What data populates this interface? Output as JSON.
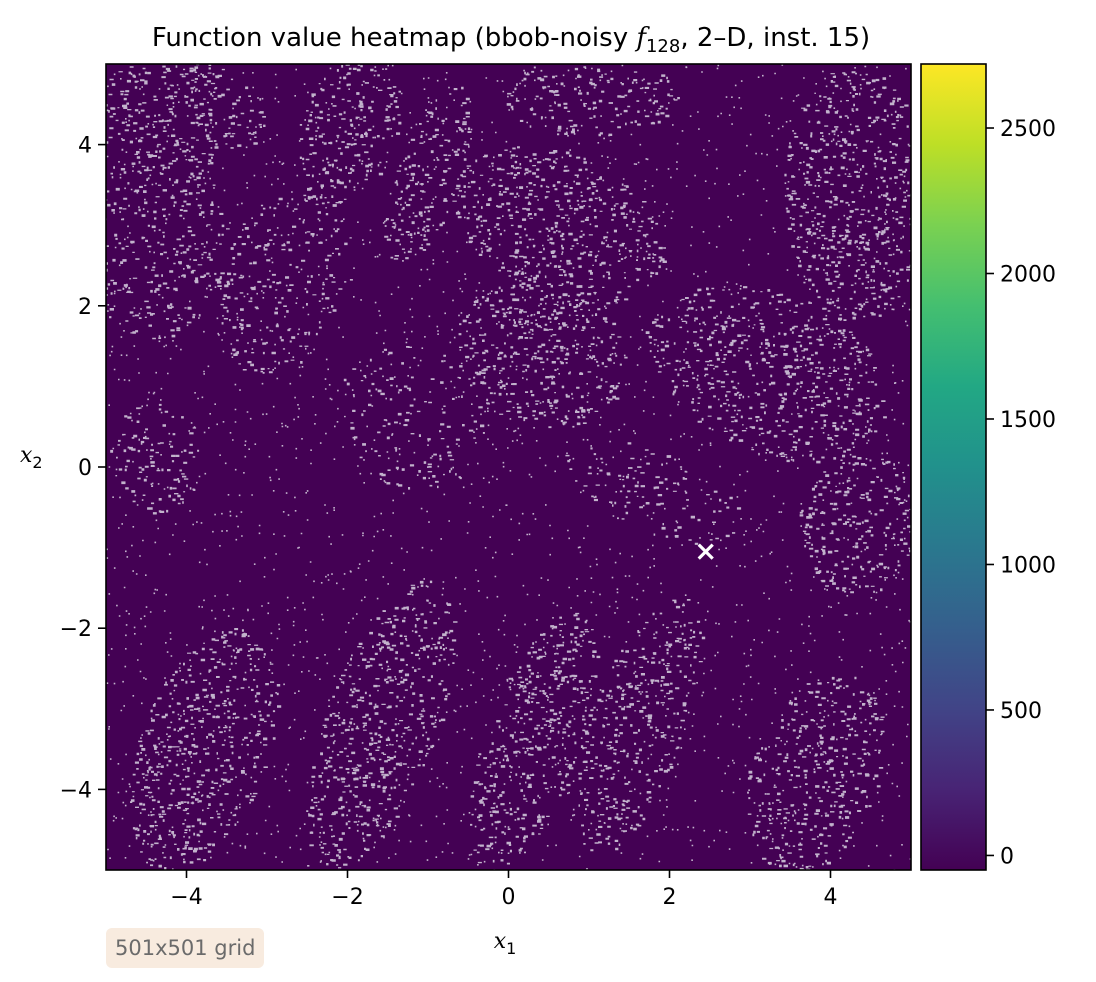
{
  "chart_data": {
    "type": "heatmap",
    "title_parts": {
      "prefix": "Function value heatmap (bbob-noisy ",
      "fname": "f",
      "fsub": "128",
      "suffix": ", 2–D, inst. 15)"
    },
    "xlabel": {
      "base": "x",
      "sub": "1"
    },
    "ylabel": {
      "base": "x",
      "sub": "2"
    },
    "xlim": [
      -5,
      5
    ],
    "ylim": [
      -5,
      5
    ],
    "x_ticks": [
      -4,
      -2,
      0,
      2,
      4
    ],
    "y_ticks": [
      -4,
      -2,
      0,
      2,
      4
    ],
    "x_tick_labels": [
      "−4",
      "−2",
      "0",
      "2",
      "4"
    ],
    "y_tick_labels": [
      "−4",
      "−2",
      "0",
      "2",
      "4"
    ],
    "colorbar": {
      "colormap": "viridis",
      "range": [
        -50,
        2720
      ],
      "ticks": [
        0,
        500,
        1000,
        1500,
        2000,
        2500
      ],
      "tick_labels": [
        "0",
        "500",
        "1000",
        "1500",
        "2000",
        "2500"
      ]
    },
    "optimum_marker": {
      "x": 2.45,
      "y": -1.05,
      "symbol": "x",
      "color": "#ffffff"
    },
    "grid": false,
    "annotation": "501x501 grid",
    "colors": {
      "background_value": "#440154",
      "speckle": "#d8d2e2"
    }
  }
}
